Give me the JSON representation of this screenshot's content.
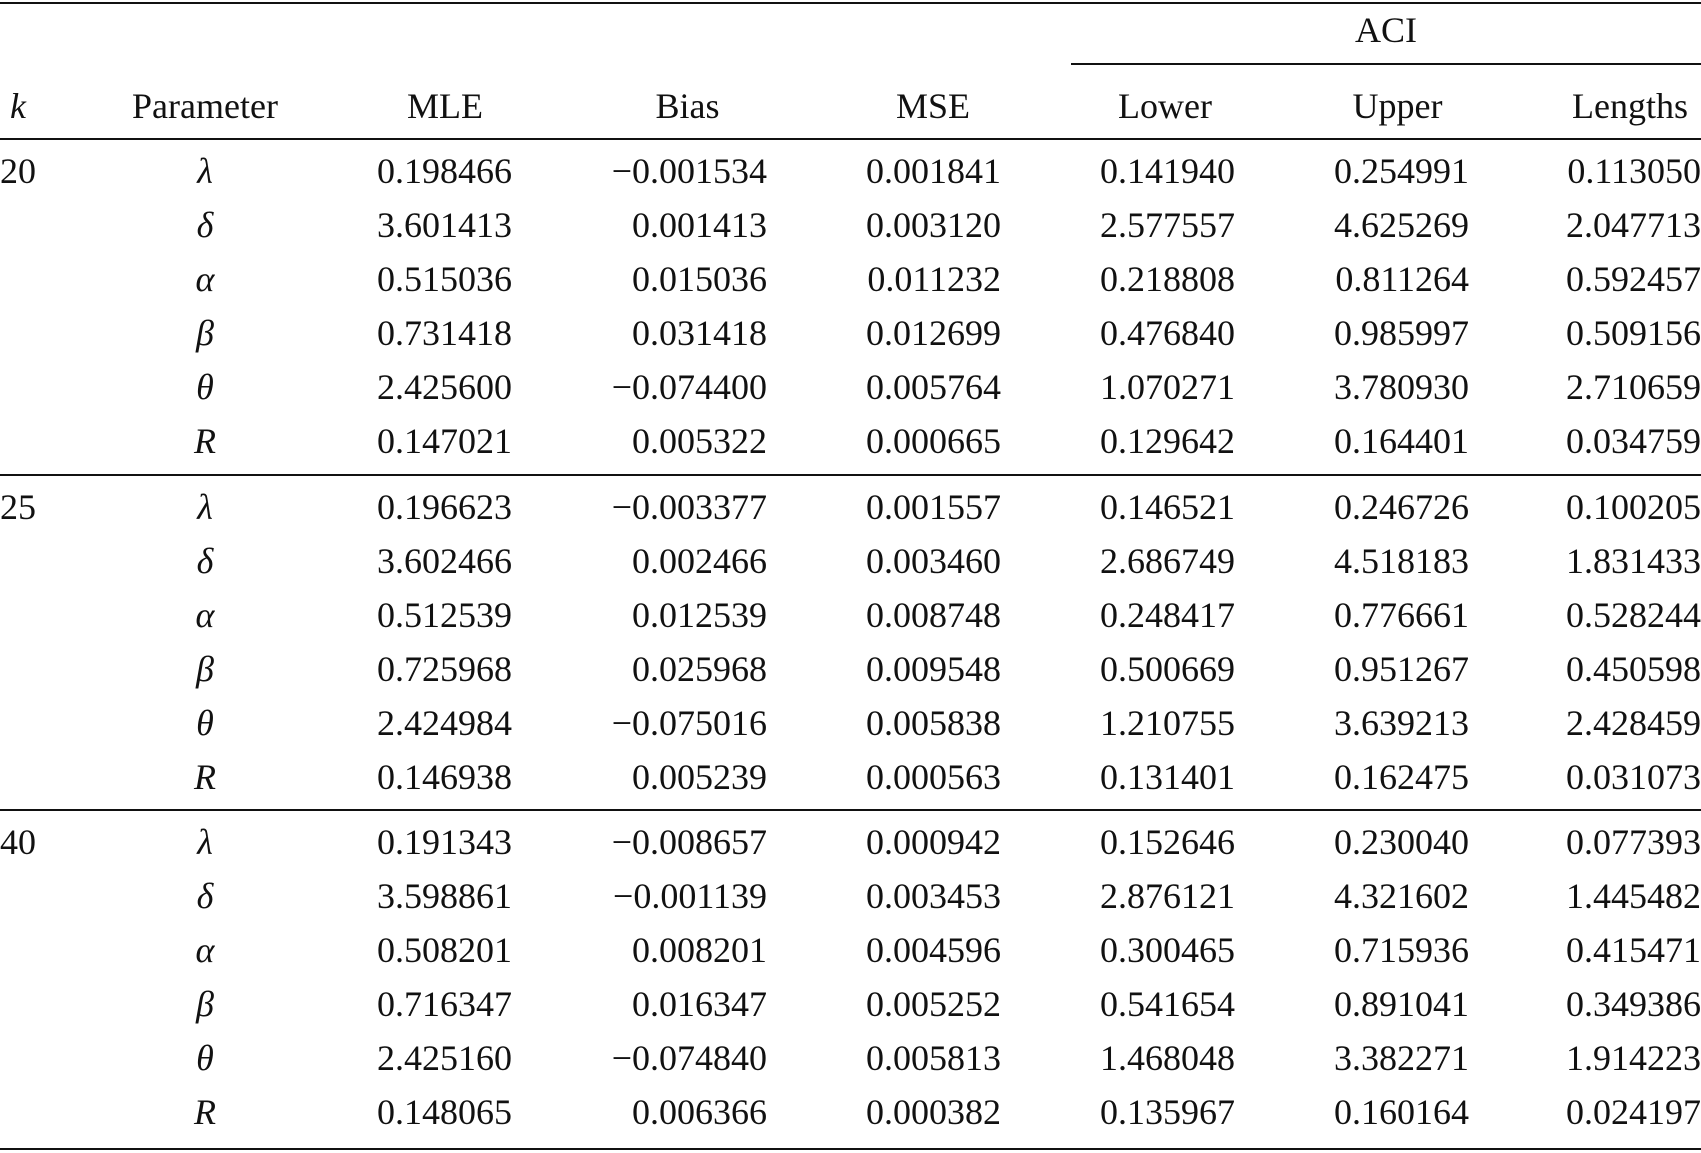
{
  "headers": {
    "group": "ACI",
    "k": "k",
    "parameter": "Parameter",
    "mle": "MLE",
    "bias": "Bias",
    "mse": "MSE",
    "lower": "Lower",
    "upper": "Upper",
    "lengths": "Lengths"
  },
  "groups": [
    {
      "k": "20",
      "rows": [
        {
          "parameter": "λ",
          "mle": "0.198466",
          "bias": "−0.001534",
          "mse": "0.001841",
          "lower": "0.141940",
          "upper": "0.254991",
          "lengths": "0.113050"
        },
        {
          "parameter": "δ",
          "mle": "3.601413",
          "bias": "0.001413",
          "mse": "0.003120",
          "lower": "2.577557",
          "upper": "4.625269",
          "lengths": "2.047713"
        },
        {
          "parameter": "α",
          "mle": "0.515036",
          "bias": "0.015036",
          "mse": "0.011232",
          "lower": "0.218808",
          "upper": "0.811264",
          "lengths": "0.592457"
        },
        {
          "parameter": "β",
          "mle": "0.731418",
          "bias": "0.031418",
          "mse": "0.012699",
          "lower": "0.476840",
          "upper": "0.985997",
          "lengths": "0.509156"
        },
        {
          "parameter": "θ",
          "mle": "2.425600",
          "bias": "−0.074400",
          "mse": "0.005764",
          "lower": "1.070271",
          "upper": "3.780930",
          "lengths": "2.710659"
        },
        {
          "parameter": "R",
          "mle": "0.147021",
          "bias": "0.005322",
          "mse": "0.000665",
          "lower": "0.129642",
          "upper": "0.164401",
          "lengths": "0.034759"
        }
      ]
    },
    {
      "k": "25",
      "rows": [
        {
          "parameter": "λ",
          "mle": "0.196623",
          "bias": "−0.003377",
          "mse": "0.001557",
          "lower": "0.146521",
          "upper": "0.246726",
          "lengths": "0.100205"
        },
        {
          "parameter": "δ",
          "mle": "3.602466",
          "bias": "0.002466",
          "mse": "0.003460",
          "lower": "2.686749",
          "upper": "4.518183",
          "lengths": "1.831433"
        },
        {
          "parameter": "α",
          "mle": "0.512539",
          "bias": "0.012539",
          "mse": "0.008748",
          "lower": "0.248417",
          "upper": "0.776661",
          "lengths": "0.528244"
        },
        {
          "parameter": "β",
          "mle": "0.725968",
          "bias": "0.025968",
          "mse": "0.009548",
          "lower": "0.500669",
          "upper": "0.951267",
          "lengths": "0.450598"
        },
        {
          "parameter": "θ",
          "mle": "2.424984",
          "bias": "−0.075016",
          "mse": "0.005838",
          "lower": "1.210755",
          "upper": "3.639213",
          "lengths": "2.428459"
        },
        {
          "parameter": "R",
          "mle": "0.146938",
          "bias": "0.005239",
          "mse": "0.000563",
          "lower": "0.131401",
          "upper": "0.162475",
          "lengths": "0.031073"
        }
      ]
    },
    {
      "k": "40",
      "rows": [
        {
          "parameter": "λ",
          "mle": "0.191343",
          "bias": "−0.008657",
          "mse": "0.000942",
          "lower": "0.152646",
          "upper": "0.230040",
          "lengths": "0.077393"
        },
        {
          "parameter": "δ",
          "mle": "3.598861",
          "bias": "−0.001139",
          "mse": "0.003453",
          "lower": "2.876121",
          "upper": "4.321602",
          "lengths": "1.445482"
        },
        {
          "parameter": "α",
          "mle": "0.508201",
          "bias": "0.008201",
          "mse": "0.004596",
          "lower": "0.300465",
          "upper": "0.715936",
          "lengths": "0.415471"
        },
        {
          "parameter": "β",
          "mle": "0.716347",
          "bias": "0.016347",
          "mse": "0.005252",
          "lower": "0.541654",
          "upper": "0.891041",
          "lengths": "0.349386"
        },
        {
          "parameter": "θ",
          "mle": "2.425160",
          "bias": "−0.074840",
          "mse": "0.005813",
          "lower": "1.468048",
          "upper": "3.382271",
          "lengths": "1.914223"
        },
        {
          "parameter": "R",
          "mle": "0.148065",
          "bias": "0.006366",
          "mse": "0.000382",
          "lower": "0.135967",
          "upper": "0.160164",
          "lengths": "0.024197"
        }
      ]
    }
  ]
}
